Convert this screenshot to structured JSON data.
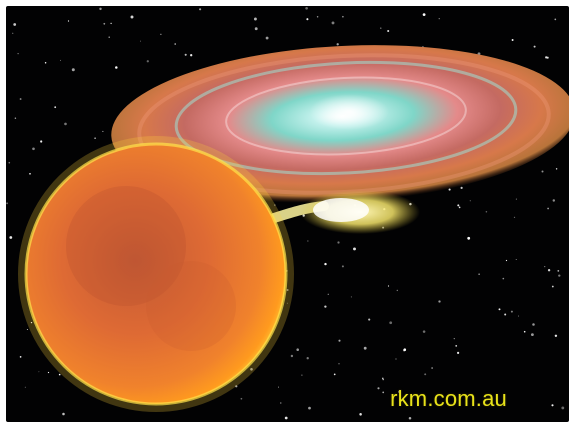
{
  "image": {
    "description_colors": {
      "background": "#020203",
      "star_primary": "#f06a2a",
      "disk_outer": "#d75a3a",
      "disk_inner": "#7fd6c8",
      "stream": "#fff8a0"
    },
    "credit_text": "rkm.com.au"
  }
}
